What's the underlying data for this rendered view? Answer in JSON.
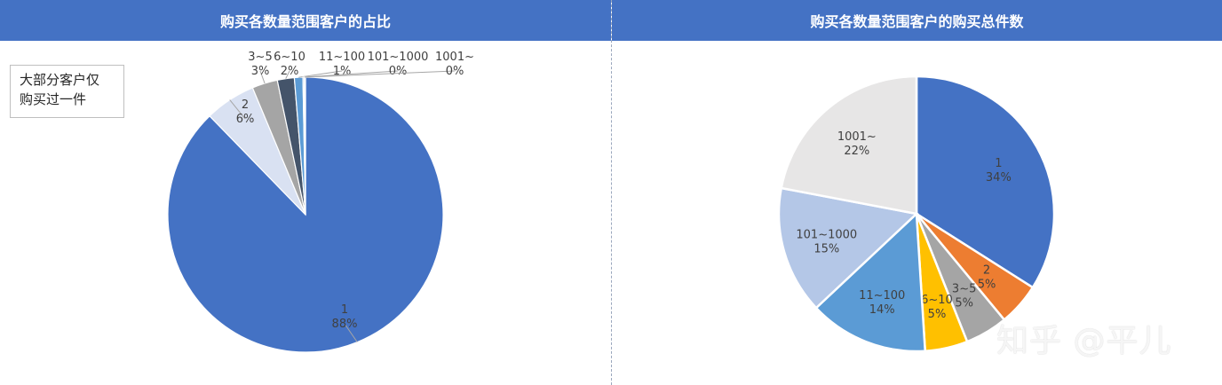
{
  "colors": {
    "header_bg": "#4472c4",
    "left_slices": [
      "#4472c4",
      "#d9e1f2",
      "#a5a5a5",
      "#44546a",
      "#5b9bd5",
      "#8eb0e0",
      "#b4c7e7"
    ],
    "right_slices": [
      "#4472c4",
      "#ed7d31",
      "#a5a5a5",
      "#ffc000",
      "#5b9bd5",
      "#b4c7e7",
      "#e7e6e6"
    ]
  },
  "note": {
    "line1": "大部分客户仅",
    "line2": "购买过一件"
  },
  "watermark": "知乎 @平儿",
  "chart_data": [
    {
      "type": "pie",
      "title": "购买各数量范围客户的占比",
      "categories": [
        "1",
        "2",
        "3~5",
        "6~10",
        "11~100",
        "101~1000",
        "1001~"
      ],
      "values": [
        88,
        6,
        3,
        2,
        1,
        0,
        0
      ],
      "percent_labels": [
        "88%",
        "6%",
        "3%",
        "2%",
        "1%",
        "0%",
        "0%"
      ]
    },
    {
      "type": "pie",
      "title": "购买各数量范围客户的购买总件数",
      "categories": [
        "1",
        "2",
        "3~5",
        "6~10",
        "11~100",
        "101~1000",
        "1001~"
      ],
      "values": [
        34,
        5,
        5,
        5,
        14,
        15,
        22
      ],
      "percent_labels": [
        "34%",
        "5%",
        "5%",
        "5%",
        "14%",
        "15%",
        "22%"
      ]
    }
  ]
}
